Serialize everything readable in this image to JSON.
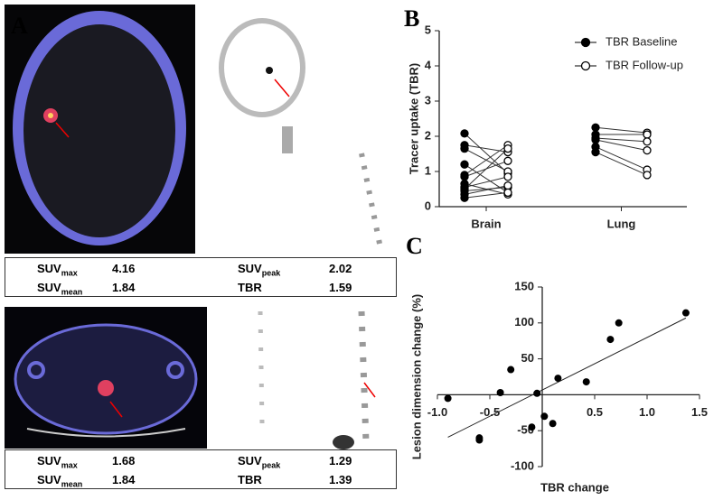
{
  "panels": {
    "a": "A",
    "b": "B",
    "c": "C"
  },
  "tables": [
    {
      "rows": [
        [
          {
            "label": "SUV",
            "sub": "max",
            "value": 4.16
          },
          {
            "label": "SUV",
            "sub": "peak",
            "value": 2.02
          }
        ],
        [
          {
            "label": "SUV",
            "sub": "mean",
            "value": 1.84
          },
          {
            "label": "TBR",
            "value": 1.59
          }
        ]
      ]
    },
    {
      "rows": [
        [
          {
            "label": "SUV",
            "sub": "max",
            "value": 1.68
          },
          {
            "label": "SUV",
            "sub": "peak",
            "value": 1.29
          }
        ],
        [
          {
            "label": "SUV",
            "sub": "mean",
            "value": 1.84
          },
          {
            "label": "TBR",
            "value": 1.39
          }
        ]
      ]
    }
  ],
  "chart_data": [
    {
      "type": "paired",
      "ylabel": "Tracer uptake (TBR)",
      "categories": [
        "Brain",
        "Lung"
      ],
      "ylim": [
        0,
        5
      ],
      "yticks": [
        0,
        1,
        2,
        3,
        4,
        5
      ],
      "series": [
        {
          "name": "TBR Baseline",
          "color": "#000000",
          "marker": "filled",
          "values": [
            [
              2.08,
              1.75,
              1.65,
              1.2,
              0.9,
              0.85,
              0.65,
              0.55,
              0.5,
              0.45,
              0.35,
              0.25
            ],
            [
              2.25,
              2.05,
              1.95,
              1.9,
              1.7,
              1.55
            ]
          ]
        },
        {
          "name": "TBR Follow-up",
          "color": "#000000",
          "marker": "open",
          "values": [
            [
              0.95,
              1.55,
              1.0,
              0.4,
              1.75,
              1.3,
              0.35,
              0.85,
              1.65,
              0.55,
              0.6,
              0.4
            ],
            [
              2.1,
              2.05,
              1.85,
              1.6,
              1.05,
              0.9
            ]
          ]
        }
      ]
    },
    {
      "type": "scatter",
      "xlabel": "TBR change",
      "ylabel": "Lesion dimension change (%)",
      "xlim": [
        -1,
        1.5
      ],
      "ylim": [
        -100,
        150
      ],
      "xticks": [
        {
          "value": -1,
          "label": "-1.0"
        },
        {
          "value": -0.5,
          "label": "-0.5"
        },
        0.5,
        {
          "value": 1,
          "label": "1.0"
        },
        1.5
      ],
      "yticks": [
        -100,
        -50,
        50,
        100,
        150
      ],
      "trendline": true,
      "x": [
        -0.9,
        -0.6,
        -0.6,
        -0.4,
        -0.3,
        -0.1,
        -0.05,
        0.02,
        0.1,
        0.15,
        0.42,
        0.65,
        0.73,
        1.37
      ],
      "values": [
        -5,
        -60,
        -63,
        3,
        35,
        -45,
        2,
        -30,
        -40,
        23,
        18,
        77,
        100,
        114
      ],
      "color": "#000000"
    }
  ]
}
